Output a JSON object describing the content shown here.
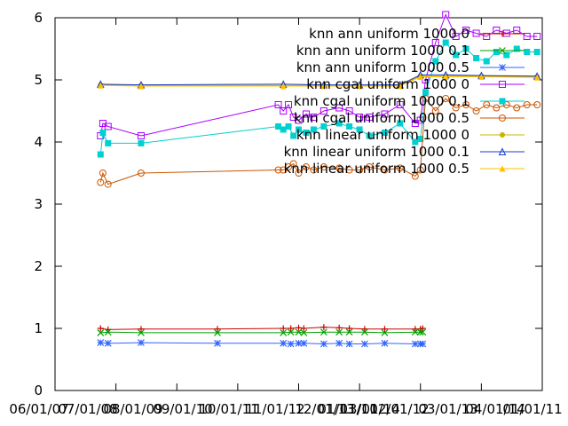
{
  "chart_data": {
    "type": "line",
    "title": "",
    "xlabel": "",
    "ylabel": "",
    "ylim": [
      0,
      6
    ],
    "xlim": [
      "2006-01-01",
      "2014-01-01"
    ],
    "y_ticks": [
      "0",
      "1",
      "2",
      "3",
      "4",
      "5",
      "6"
    ],
    "x_ticks": [
      "06/01/01",
      "07/01/01",
      "08/01/01",
      "09/01/01",
      "10/01/01",
      "11/01/01",
      "12/01/01",
      "13/01/01",
      "01/01/01",
      "02/01/01",
      "03/01/01",
      "04/01/01",
      "05/01/01",
      "06/01/01",
      "07/01/01",
      "08/01/01",
      "09/01/01",
      "10/01/01",
      "11/01/01",
      "12/01/01",
      "13/01/01",
      "14/01/01"
    ],
    "x_tick_labels_visible": [
      "06/01/07",
      "07/01/08",
      "08/01/09",
      "09/01/10",
      "10/01/11",
      "11/01/12",
      "12/01/13",
      "13/01/14",
      "01/01/11",
      "02/01/12",
      "03/01/13",
      "04/01/14",
      "01/01/11"
    ],
    "legend_position": "top-right",
    "series": [
      {
        "name": "knn ann uniform 1000 0",
        "color": "#cc0000",
        "marker": "plus",
        "x": [
          "2006-10-01",
          "2006-11-15",
          "2007-06-01",
          "2008-09-01",
          "2009-10-01",
          "2009-11-15",
          "2010-01-01",
          "2010-02-01",
          "2010-06-01",
          "2010-09-01",
          "2010-11-01",
          "2011-02-01",
          "2011-06-01",
          "2011-12-01",
          "2012-01-01",
          "2012-01-15"
        ],
        "values": [
          1.0,
          0.98,
          0.99,
          0.99,
          1.0,
          1.0,
          1.01,
          1.0,
          1.02,
          1.01,
          1.0,
          0.99,
          0.99,
          0.99,
          0.99,
          1.0
        ]
      },
      {
        "name": "knn ann uniform 1000 0.1",
        "color": "#00a000",
        "marker": "cross",
        "x": [
          "2006-10-01",
          "2006-11-15",
          "2007-06-01",
          "2008-09-01",
          "2009-10-01",
          "2009-11-15",
          "2010-01-01",
          "2010-02-01",
          "2010-06-01",
          "2010-09-01",
          "2010-11-01",
          "2011-02-01",
          "2011-06-01",
          "2011-12-01",
          "2012-01-01",
          "2012-01-15"
        ],
        "values": [
          0.93,
          0.94,
          0.93,
          0.93,
          0.93,
          0.94,
          0.94,
          0.93,
          0.94,
          0.94,
          0.94,
          0.94,
          0.93,
          0.94,
          0.94,
          0.94
        ]
      },
      {
        "name": "knn ann uniform 1000 0.5",
        "color": "#3366ff",
        "marker": "star",
        "x": [
          "2006-10-01",
          "2006-11-15",
          "2007-06-01",
          "2008-09-01",
          "2009-10-01",
          "2009-11-15",
          "2010-01-01",
          "2010-02-01",
          "2010-06-01",
          "2010-09-01",
          "2010-11-01",
          "2011-02-01",
          "2011-06-01",
          "2011-12-01",
          "2012-01-01",
          "2012-01-15"
        ],
        "values": [
          0.77,
          0.76,
          0.77,
          0.76,
          0.76,
          0.75,
          0.76,
          0.76,
          0.75,
          0.76,
          0.75,
          0.75,
          0.76,
          0.75,
          0.75,
          0.75
        ]
      },
      {
        "name": "knn cgal uniform 1000 0",
        "color": "#aa00ff",
        "marker": "square",
        "x": [
          "2006-10-01",
          "2006-10-15",
          "2006-11-15",
          "2007-06-01",
          "2009-09-01",
          "2009-10-01",
          "2009-11-01",
          "2009-12-01",
          "2010-01-01",
          "2010-02-15",
          "2010-04-01",
          "2010-06-01",
          "2010-09-01",
          "2010-11-01",
          "2011-01-01",
          "2011-03-01",
          "2011-06-01",
          "2011-09-01",
          "2011-12-01",
          "2012-01-01",
          "2012-02-01",
          "2012-04-01",
          "2012-06-01",
          "2012-08-01",
          "2012-10-01",
          "2012-12-01",
          "2013-02-01",
          "2013-04-01",
          "2013-06-01",
          "2013-08-01",
          "2013-10-01",
          "2013-12-01"
        ],
        "values": [
          4.1,
          4.3,
          4.25,
          4.1,
          4.6,
          4.5,
          4.6,
          4.4,
          4.35,
          4.45,
          4.4,
          4.5,
          4.55,
          4.5,
          4.4,
          4.4,
          4.45,
          4.6,
          4.3,
          4.35,
          5.0,
          5.6,
          6.05,
          5.7,
          5.8,
          5.75,
          5.7,
          5.8,
          5.75,
          5.8,
          5.7,
          5.7
        ]
      },
      {
        "name": "knn cgal uniform 1000 0.1",
        "color": "#00d0d0",
        "marker": "filled-square",
        "x": [
          "2006-10-01",
          "2006-10-15",
          "2006-11-15",
          "2007-06-01",
          "2009-09-01",
          "2009-10-01",
          "2009-11-01",
          "2009-12-01",
          "2010-01-01",
          "2010-02-15",
          "2010-04-01",
          "2010-06-01",
          "2010-09-01",
          "2010-11-01",
          "2011-01-01",
          "2011-03-01",
          "2011-06-01",
          "2011-09-01",
          "2011-12-01",
          "2012-01-01",
          "2012-02-01",
          "2012-04-01",
          "2012-06-01",
          "2012-08-01",
          "2012-10-01",
          "2012-12-01",
          "2013-02-01",
          "2013-04-01",
          "2013-06-01",
          "2013-08-01",
          "2013-10-01",
          "2013-12-01"
        ],
        "values": [
          3.8,
          4.15,
          3.98,
          3.98,
          4.25,
          4.2,
          4.25,
          4.1,
          4.2,
          4.15,
          4.2,
          4.25,
          4.3,
          4.25,
          4.2,
          4.1,
          4.15,
          4.3,
          4.0,
          4.05,
          4.8,
          5.3,
          5.6,
          5.4,
          5.5,
          5.35,
          5.3,
          5.45,
          5.4,
          5.5,
          5.45,
          5.45
        ]
      },
      {
        "name": "knn cgal uniform 1000 0.5",
        "color": "#cc5500",
        "marker": "circle",
        "x": [
          "2006-10-01",
          "2006-10-15",
          "2006-11-15",
          "2007-06-01",
          "2009-09-01",
          "2009-10-01",
          "2009-11-01",
          "2009-12-01",
          "2010-01-01",
          "2010-02-15",
          "2010-04-01",
          "2010-06-01",
          "2010-09-01",
          "2010-11-01",
          "2011-01-01",
          "2011-03-01",
          "2011-06-01",
          "2011-09-01",
          "2011-12-01",
          "2012-01-01",
          "2012-02-01",
          "2012-04-01",
          "2012-06-01",
          "2012-08-01",
          "2012-10-01",
          "2012-12-01",
          "2013-02-01",
          "2013-04-01",
          "2013-06-01",
          "2013-08-01",
          "2013-10-01",
          "2013-12-01"
        ],
        "values": [
          3.35,
          3.5,
          3.32,
          3.5,
          3.55,
          3.55,
          3.6,
          3.65,
          3.5,
          3.6,
          3.55,
          3.6,
          3.58,
          3.55,
          3.55,
          3.6,
          3.55,
          3.58,
          3.45,
          3.55,
          4.7,
          4.5,
          4.7,
          4.55,
          4.6,
          4.5,
          4.6,
          4.55,
          4.6,
          4.55,
          4.6,
          4.6
        ]
      },
      {
        "name": "knn linear uniform 1000 0",
        "color": "#c8b400",
        "marker": "filled-circle",
        "x": [
          "2006-10-01",
          "2007-06-01",
          "2009-10-01",
          "2010-06-01",
          "2011-01-01",
          "2011-09-01",
          "2012-01-01",
          "2012-06-01",
          "2013-01-01",
          "2013-12-01"
        ],
        "values": [
          4.92,
          4.91,
          4.91,
          4.91,
          4.91,
          4.91,
          5.06,
          5.06,
          5.06,
          5.05
        ]
      },
      {
        "name": "knn linear uniform 1000 0.1",
        "color": "#1a3ccc",
        "marker": "triangle",
        "x": [
          "2006-10-01",
          "2007-06-01",
          "2009-10-01",
          "2010-06-01",
          "2011-01-01",
          "2011-09-01",
          "2012-01-01",
          "2012-06-01",
          "2013-01-01",
          "2013-12-01"
        ],
        "values": [
          4.93,
          4.92,
          4.93,
          4.92,
          4.92,
          4.92,
          5.08,
          5.08,
          5.07,
          5.06
        ]
      },
      {
        "name": "knn linear uniform 1000 0.5",
        "color": "#ffc000",
        "marker": "filled-triangle",
        "x": [
          "2006-10-01",
          "2007-06-01",
          "2009-10-01",
          "2010-06-01",
          "2011-01-01",
          "2011-09-01",
          "2012-01-01",
          "2012-06-01",
          "2013-01-01",
          "2013-12-01"
        ],
        "values": [
          4.91,
          4.9,
          4.9,
          4.9,
          4.9,
          4.9,
          5.05,
          5.05,
          5.05,
          5.04
        ]
      }
    ]
  }
}
